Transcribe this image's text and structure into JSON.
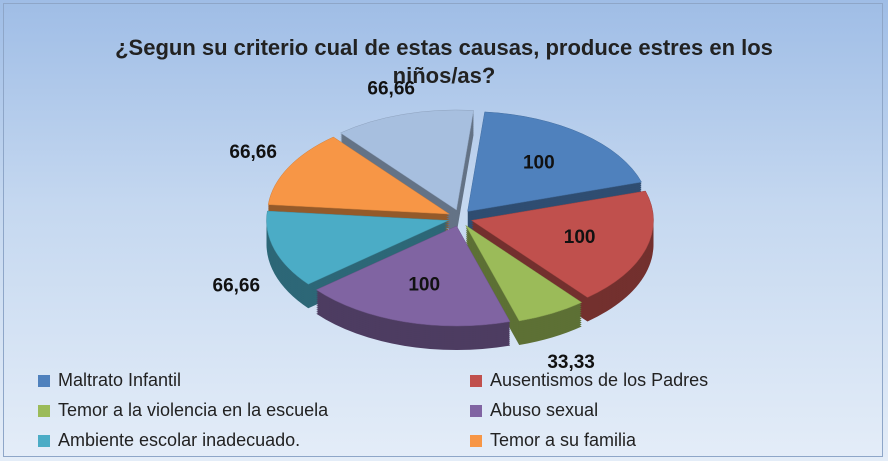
{
  "chart_data": {
    "type": "pie",
    "title": "¿Segun su criterio cual de estas causas, produce estres en los niños/as?",
    "categories": [
      "Maltrato Infantil",
      "Ausentismos de los Padres",
      "Temor  a la violencia en la escuela",
      "Abuso sexual",
      "Ambiente escolar inadecuado.",
      "Temor a su familia",
      null
    ],
    "values": [
      100,
      100,
      33.33,
      100,
      66.66,
      66.66,
      66.66
    ],
    "value_labels": [
      "100",
      "100",
      "33,33",
      "100",
      "66,66",
      "66,66",
      "66,66"
    ],
    "colors": [
      "#4f81bd",
      "#c0504d",
      "#9bbb59",
      "#8064a2",
      "#4bacc6",
      "#f79646",
      "#a7bfdf"
    ],
    "exploded": true,
    "three_d": true
  }
}
